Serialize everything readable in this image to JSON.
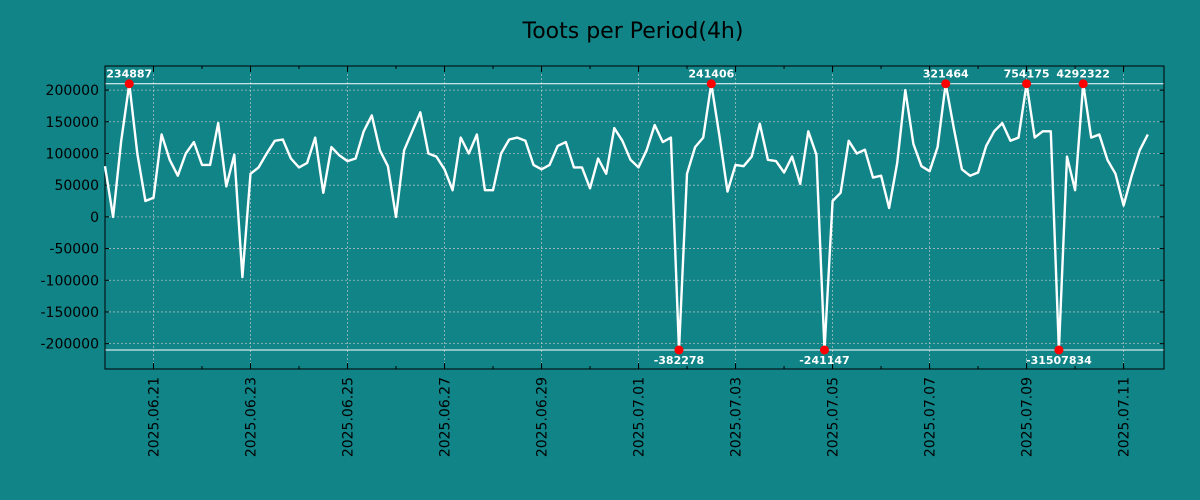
{
  "chart_data": {
    "type": "line",
    "title": "Toots per Period(4h)",
    "xlabel": "",
    "ylabel": "",
    "x_tick_labels": [
      "2025.06.21",
      "2025.06.23",
      "2025.06.25",
      "2025.06.27",
      "2025.06.29",
      "2025.07.01",
      "2025.07.03",
      "2025.07.05",
      "2025.07.07",
      "2025.07.09",
      "2025.07.11"
    ],
    "x_start": "2025-06-20",
    "x_end": "2025-07-11T20:00",
    "period_hours": 4,
    "y_ticks": [
      -200000,
      -150000,
      -100000,
      -50000,
      0,
      50000,
      100000,
      150000,
      200000
    ],
    "ylim": [
      -240000,
      238000
    ],
    "clip_limits": [
      210000,
      -210000
    ],
    "grid": true,
    "colors": {
      "background": "#118488",
      "line": "#ffffff",
      "marker": "#ff0000",
      "text": "#000000",
      "label_text": "#ffffff"
    },
    "series": [
      {
        "values": [
          80000,
          0,
          120000,
          210000,
          100000,
          25000,
          30000,
          130000,
          90000,
          65000,
          100000,
          118000,
          82000,
          82000,
          148000,
          48000,
          98000,
          -95000,
          68000,
          78000,
          100000,
          120000,
          122000,
          92000,
          78000,
          85000,
          125000,
          38000,
          110000,
          97000,
          88000,
          92000,
          135000,
          160000,
          105000,
          80000,
          0,
          105000,
          135000,
          165000,
          100000,
          95000,
          75000,
          42000,
          125000,
          100000,
          130000,
          42000,
          42000,
          100000,
          122000,
          125000,
          120000,
          82000,
          75000,
          82000,
          112000,
          118000,
          78000,
          78000,
          45000,
          92000,
          68000,
          140000,
          120000,
          90000,
          78000,
          105000,
          145000,
          118000,
          125000,
          -210000,
          68000,
          110000,
          125000,
          210000,
          128000,
          40000,
          82000,
          80000,
          95000,
          147000,
          90000,
          88000,
          70000,
          95000,
          52000,
          135000,
          98000,
          -210000,
          25000,
          38000,
          120000,
          100000,
          106000,
          62000,
          65000,
          14000,
          85000,
          200000,
          115000,
          80000,
          72000,
          110000,
          210000,
          140000,
          75000,
          65000,
          70000,
          112000,
          135000,
          148000,
          120000,
          125000,
          210000,
          125000,
          135000,
          135000,
          -210000,
          95000,
          42000,
          210000,
          125000,
          130000,
          90000,
          68000,
          18000,
          65000,
          105000,
          130000
        ]
      }
    ],
    "annotations": [
      {
        "text": "234887",
        "index": 3,
        "position": "top"
      },
      {
        "text": "241406",
        "index": 75,
        "position": "top"
      },
      {
        "text": "321464",
        "index": 104,
        "position": "top"
      },
      {
        "text": "754175",
        "index": 114,
        "position": "top"
      },
      {
        "text": "4292322",
        "index": 121,
        "position": "top"
      },
      {
        "text": "-382278",
        "index": 71,
        "position": "bottom"
      },
      {
        "text": "-241147",
        "index": 89,
        "position": "bottom"
      },
      {
        "text": "-31507834",
        "index": 118,
        "position": "bottom"
      }
    ]
  }
}
